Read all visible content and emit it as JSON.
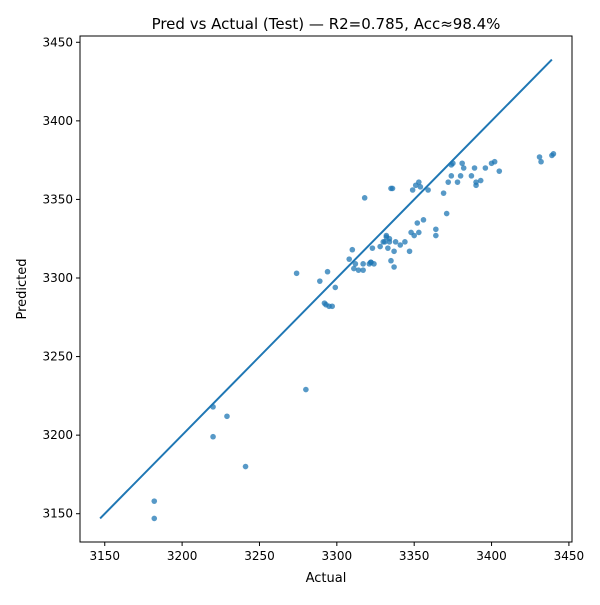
{
  "colors": {
    "points": "#1f77b4",
    "line": "#1f77b4",
    "axes": "#000000"
  },
  "chart_data": {
    "type": "scatter",
    "title": "Pred vs Actual (Test) — R2=0.785, Acc≈98.4%",
    "xlabel": "Actual",
    "ylabel": "Predicted",
    "xlim": [
      3134,
      3452
    ],
    "ylim": [
      3132,
      3454
    ],
    "xticks": [
      3150,
      3200,
      3250,
      3300,
      3350,
      3400,
      3450
    ],
    "yticks": [
      3150,
      3200,
      3250,
      3300,
      3350,
      3400,
      3450
    ],
    "grid": false,
    "reference_line": {
      "x": [
        3147,
        3439
      ],
      "y": [
        3147,
        3439
      ]
    },
    "series": [
      {
        "points": [
          [
            3182,
            3158
          ],
          [
            3182,
            3147
          ],
          [
            3220,
            3218
          ],
          [
            3220,
            3199
          ],
          [
            3229,
            3212
          ],
          [
            3241,
            3180
          ],
          [
            3280,
            3229
          ],
          [
            3274,
            3303
          ],
          [
            3289,
            3298
          ],
          [
            3292,
            3284
          ],
          [
            3293,
            3283
          ],
          [
            3295,
            3282
          ],
          [
            3294,
            3304
          ],
          [
            3297,
            3282
          ],
          [
            3299,
            3294
          ],
          [
            3308,
            3312
          ],
          [
            3310,
            3318
          ],
          [
            3311,
            3306
          ],
          [
            3312,
            3309
          ],
          [
            3314,
            3305
          ],
          [
            3317,
            3305
          ],
          [
            3317,
            3309
          ],
          [
            3318,
            3351
          ],
          [
            3321,
            3309
          ],
          [
            3322,
            3310
          ],
          [
            3322,
            3310
          ],
          [
            3323,
            3319
          ],
          [
            3324,
            3309
          ],
          [
            3328,
            3320
          ],
          [
            3330,
            3323
          ],
          [
            3331,
            3323
          ],
          [
            3332,
            3326
          ],
          [
            3332,
            3327
          ],
          [
            3333,
            3319
          ],
          [
            3334,
            3325
          ],
          [
            3334,
            3323
          ],
          [
            3335,
            3357
          ],
          [
            3336,
            3357
          ],
          [
            3335,
            3311
          ],
          [
            3337,
            3307
          ],
          [
            3337,
            3317
          ],
          [
            3338,
            3323
          ],
          [
            3341,
            3321
          ],
          [
            3344,
            3323
          ],
          [
            3347,
            3317
          ],
          [
            3348,
            3329
          ],
          [
            3349,
            3356
          ],
          [
            3350,
            3327
          ],
          [
            3351,
            3359
          ],
          [
            3352,
            3335
          ],
          [
            3353,
            3329
          ],
          [
            3353,
            3361
          ],
          [
            3354,
            3358
          ],
          [
            3356,
            3337
          ],
          [
            3359,
            3356
          ],
          [
            3364,
            3331
          ],
          [
            3364,
            3327
          ],
          [
            3369,
            3354
          ],
          [
            3371,
            3341
          ],
          [
            3372,
            3361
          ],
          [
            3374,
            3365
          ],
          [
            3374,
            3372
          ],
          [
            3375,
            3373
          ],
          [
            3378,
            3361
          ],
          [
            3380,
            3365
          ],
          [
            3381,
            3373
          ],
          [
            3382,
            3370
          ],
          [
            3387,
            3365
          ],
          [
            3389,
            3370
          ],
          [
            3390,
            3359
          ],
          [
            3390,
            3361
          ],
          [
            3393,
            3362
          ],
          [
            3396,
            3370
          ],
          [
            3400,
            3373
          ],
          [
            3402,
            3374
          ],
          [
            3405,
            3368
          ],
          [
            3431,
            3377
          ],
          [
            3432,
            3374
          ],
          [
            3439,
            3378
          ],
          [
            3440,
            3379
          ]
        ]
      }
    ]
  }
}
